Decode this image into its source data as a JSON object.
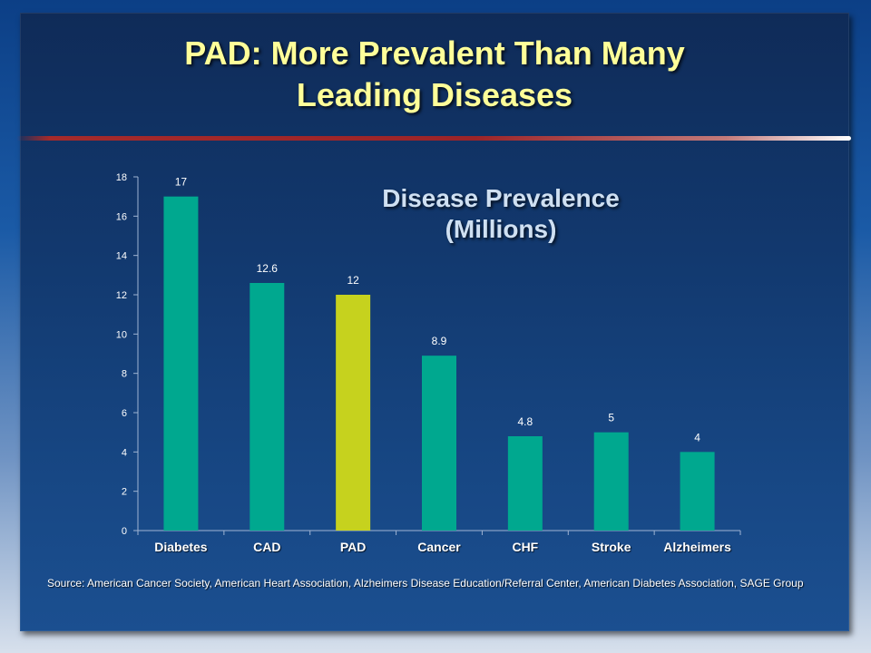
{
  "slide": {
    "title_lines": [
      "PAD: More Prevalent Than Many",
      "Leading Diseases"
    ],
    "source": "Source: American Cancer Society, American Heart Association, Alzheimers Disease Education/Referral Center, American Diabetes Association, SAGE Group"
  },
  "colors": {
    "bar": "#00a88f",
    "highlight_bar": "#c6d21e",
    "title": "#ffff99"
  },
  "chart_data": {
    "type": "bar",
    "title_lines": [
      "Disease Prevalence",
      "(Millions)"
    ],
    "categories": [
      "Diabetes",
      "CAD",
      "PAD",
      "Cancer",
      "CHF",
      "Stroke",
      "Alzheimers"
    ],
    "values": [
      17,
      12.6,
      12,
      8.9,
      4.8,
      5,
      4
    ],
    "data_labels": [
      "17",
      "12.6",
      "12",
      "8.9",
      "4.8",
      "5",
      "4"
    ],
    "highlight_category": "PAD",
    "ylim": [
      0,
      18
    ],
    "yticks": [
      0,
      2,
      4,
      6,
      8,
      10,
      12,
      14,
      16,
      18
    ],
    "grid": false,
    "legend": "none"
  }
}
